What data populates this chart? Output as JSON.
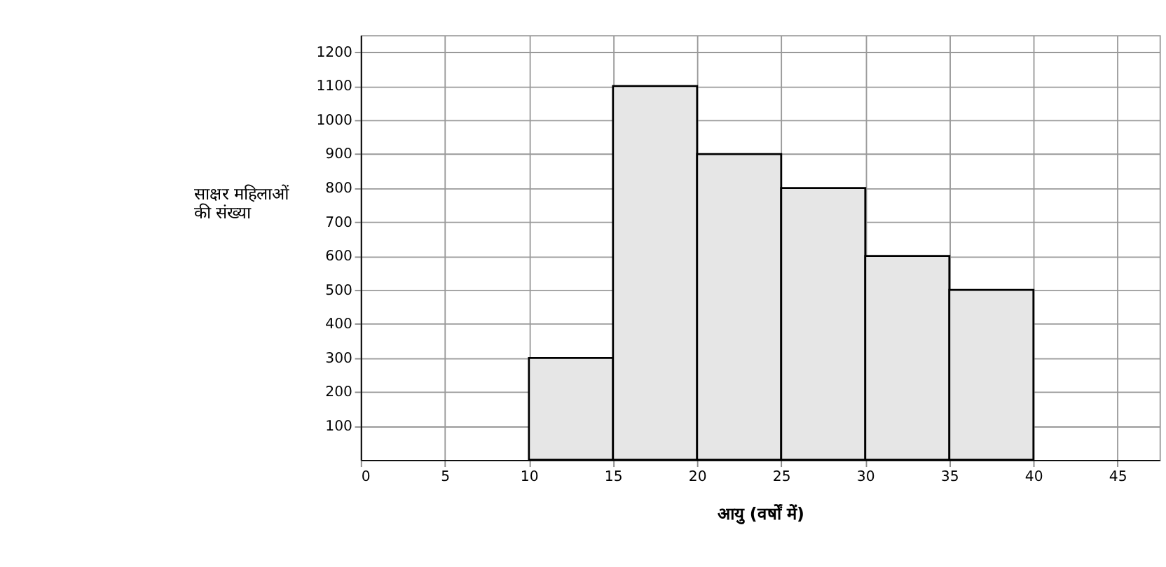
{
  "chart_data": {
    "type": "histogram",
    "xlabel": "आयु (वर्षों में)",
    "ylabel": "साक्षर महिलाओं की संख्या",
    "bins": [
      10,
      15,
      20,
      25,
      30,
      35,
      40
    ],
    "values": [
      300,
      1100,
      900,
      800,
      600,
      500
    ],
    "color": "#e6e6e6",
    "xlim": [
      0,
      47.5
    ],
    "xticks": [
      0,
      5,
      10,
      15,
      20,
      25,
      30,
      35,
      40,
      45
    ],
    "ylim": [
      0,
      1250
    ],
    "yticks": [
      100,
      200,
      300,
      400,
      500,
      600,
      700,
      800,
      900,
      1000,
      1100,
      1200
    ],
    "grid": true
  }
}
